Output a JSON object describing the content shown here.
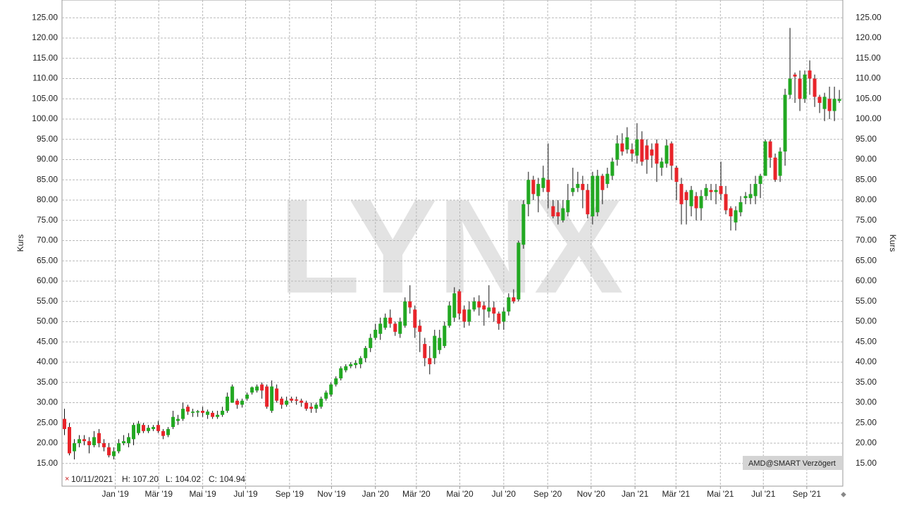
{
  "chart_data": {
    "type": "candlestick",
    "watermark": "LYNX",
    "ylabel": "Kurs",
    "info": {
      "date": "10/11/2021",
      "high": "H: 107.20",
      "low": "L: 104.02",
      "close": "C: 104.94"
    },
    "source": "AMD@SMART Verzögert",
    "up_color": "#22a822",
    "down_color": "#e8242a",
    "grid": true,
    "xlim": [
      -0.5,
      157.7
    ],
    "xticks": [
      {
        "value": 10.3,
        "label": "Jan '19"
      },
      {
        "value": 19.1,
        "label": "Mär '19"
      },
      {
        "value": 28,
        "label": "Mai '19"
      },
      {
        "value": 36.7,
        "label": "Jul '19"
      },
      {
        "value": 45.6,
        "label": "Sep '19"
      },
      {
        "value": 54.1,
        "label": "Nov '19"
      },
      {
        "value": 63,
        "label": "Jan '20"
      },
      {
        "value": 71.3,
        "label": "Mär '20"
      },
      {
        "value": 80.1,
        "label": "Mai '20"
      },
      {
        "value": 89,
        "label": "Jul '20"
      },
      {
        "value": 97.9,
        "label": "Sep '20"
      },
      {
        "value": 106.7,
        "label": "Nov '20"
      },
      {
        "value": 115.6,
        "label": "Jan '21"
      },
      {
        "value": 123.9,
        "label": "Mär '21"
      },
      {
        "value": 132.9,
        "label": "Mai '21"
      },
      {
        "value": 141.6,
        "label": "Jul '21"
      },
      {
        "value": 150.4,
        "label": "Sep '21"
      }
    ],
    "ylim": [
      9.4,
      129.4
    ],
    "yticks": [
      {
        "value": 15,
        "label": "15.00"
      },
      {
        "value": 20,
        "label": "20.00"
      },
      {
        "value": 25,
        "label": "25.00"
      },
      {
        "value": 30,
        "label": "30.00"
      },
      {
        "value": 35,
        "label": "35.00"
      },
      {
        "value": 40,
        "label": "40.00"
      },
      {
        "value": 45,
        "label": "45.00"
      },
      {
        "value": 50,
        "label": "50.00"
      },
      {
        "value": 55,
        "label": "55.00"
      },
      {
        "value": 60,
        "label": "60.00"
      },
      {
        "value": 65,
        "label": "65.00"
      },
      {
        "value": 70,
        "label": "70.00"
      },
      {
        "value": 75,
        "label": "75.00"
      },
      {
        "value": 80,
        "label": "80.00"
      },
      {
        "value": 85,
        "label": "85.00"
      },
      {
        "value": 90,
        "label": "90.00"
      },
      {
        "value": 95,
        "label": "95.00"
      },
      {
        "value": 100,
        "label": "100.00"
      },
      {
        "value": 105,
        "label": "105.00"
      },
      {
        "value": 110,
        "label": "110.00"
      },
      {
        "value": 115,
        "label": "115.00"
      },
      {
        "value": 120,
        "label": "120.00"
      },
      {
        "value": 125,
        "label": "125.00"
      }
    ],
    "open": [
      26,
      24,
      18,
      20,
      21,
      20.5,
      19.5,
      22.5,
      20,
      19,
      16.8,
      18,
      20,
      20,
      21,
      22.5,
      24.5,
      23,
      23.5,
      24.5,
      23,
      22,
      24,
      25.5,
      26,
      29,
      27.5,
      27.6,
      28,
      27,
      27.5,
      26.5,
      27,
      28,
      30,
      30.5,
      29.5,
      31,
      32.5,
      33,
      34.5,
      34,
      28,
      33.5,
      31,
      29.5,
      31,
      30.8,
      30.5,
      30,
      29,
      28.5,
      29,
      31,
      32,
      34.5,
      36,
      38,
      39,
      39.3,
      39.5,
      41,
      43.5,
      46,
      47,
      48.5,
      51,
      49.5,
      47,
      49,
      55,
      53,
      49,
      44.5,
      41,
      41,
      43,
      44,
      49,
      51,
      57.5,
      53,
      50,
      53,
      55,
      54,
      52.5,
      53.5,
      52,
      50,
      52.5,
      56,
      55.5,
      69,
      79,
      85,
      81,
      83,
      85,
      78.5,
      77,
      75,
      77,
      82,
      83,
      84,
      82.5,
      76,
      77,
      86,
      84,
      86,
      90,
      94,
      92.5,
      92.5,
      91,
      95,
      93.5,
      92.5,
      94,
      88,
      89,
      94,
      88,
      84,
      82,
      78.5,
      81,
      78,
      81,
      82.5,
      82,
      83.5,
      81.5,
      78,
      74.5,
      77,
      80.5,
      80.5,
      81,
      84,
      86,
      94.5,
      90.5,
      86,
      92,
      106,
      111,
      110,
      105,
      112,
      110,
      105.5,
      102.5,
      105,
      102,
      104.5
    ],
    "high": [
      28.5,
      25,
      21,
      22,
      22,
      21.5,
      23,
      23.5,
      21,
      20,
      19,
      21,
      22,
      22.5,
      25,
      25.5,
      25,
      24.5,
      24.5,
      25.5,
      23.5,
      24,
      28,
      27,
      30,
      29.5,
      28.5,
      28.2,
      29,
      28.3,
      28,
      28,
      29,
      32.5,
      34.5,
      31,
      31,
      32.5,
      34,
      34.5,
      35,
      34.5,
      35.5,
      34.5,
      31.5,
      31.5,
      31.5,
      31.5,
      31,
      30.5,
      30,
      30,
      31.5,
      33,
      35,
      36.5,
      39,
      39.5,
      40,
      40.5,
      41.5,
      44,
      47,
      49.5,
      51,
      52,
      53,
      50,
      51,
      56,
      59,
      54,
      50.5,
      46,
      44,
      48,
      48,
      50,
      55,
      58.5,
      58,
      54,
      55,
      56,
      56.5,
      55,
      59,
      55,
      52.5,
      53.5,
      57,
      58,
      70,
      80,
      87,
      86,
      85.5,
      88.5,
      94,
      80,
      80,
      80,
      84,
      88,
      87,
      86,
      84,
      87,
      87.5,
      86.5,
      88,
      90.5,
      96,
      96.5,
      98,
      94,
      99,
      97,
      95,
      94,
      95,
      90.5,
      95,
      94.5,
      88.5,
      85.5,
      82.5,
      83.5,
      82,
      82.5,
      84,
      84,
      84,
      89.5,
      83.5,
      78.5,
      78.5,
      81,
      82,
      84,
      86,
      86.5,
      95,
      95,
      91.5,
      93,
      107.5,
      122.5,
      111.5,
      112,
      112,
      114.5,
      111,
      106,
      106.5,
      108,
      108,
      107.2
    ],
    "low": [
      22,
      17,
      16,
      19,
      19.5,
      17.5,
      19,
      19,
      18,
      16.5,
      16,
      17.5,
      19.5,
      19,
      19.5,
      22,
      22.5,
      22.5,
      23,
      22.5,
      21,
      21.5,
      23.5,
      24.5,
      25.5,
      27,
      26.5,
      26.5,
      26.5,
      26,
      26,
      26,
      26.5,
      27.5,
      30,
      28.5,
      28.8,
      30.5,
      32,
      32.5,
      31,
      28.5,
      27.5,
      30,
      28.5,
      29,
      30,
      29.5,
      29,
      28,
      27.5,
      27.5,
      28.5,
      30.5,
      31.5,
      34,
      35.5,
      37.5,
      38.5,
      38.5,
      38.5,
      40,
      42.5,
      45.5,
      45.5,
      48,
      48.5,
      46.5,
      46,
      48.5,
      52,
      46,
      42.5,
      39,
      37,
      39.5,
      42,
      43.5,
      48.5,
      50,
      50.5,
      48.5,
      49,
      52.5,
      51.5,
      49,
      51,
      50,
      48,
      48,
      51.5,
      54.5,
      55,
      68,
      76,
      80,
      77,
      82,
      78,
      75.5,
      74,
      74.5,
      76,
      81,
      82,
      78,
      75.5,
      74,
      76,
      79,
      83,
      85,
      88.5,
      91,
      91.5,
      89.5,
      89,
      88.5,
      86.5,
      88,
      84.5,
      86,
      88,
      85,
      80,
      74,
      74,
      76,
      75,
      75,
      80,
      80,
      79,
      80,
      76.5,
      72.5,
      72.5,
      76,
      79,
      79,
      79,
      80.5,
      86,
      88,
      84.5,
      84.5,
      88.5,
      105,
      104,
      102,
      104,
      106,
      103,
      101.5,
      99.5,
      100,
      99.5,
      104.02
    ],
    "close": [
      23.5,
      17.5,
      20,
      21,
      20.5,
      19.5,
      21.5,
      20,
      19,
      17,
      18,
      20,
      20.5,
      21.5,
      24.5,
      24.8,
      23,
      23.8,
      24,
      23,
      21.8,
      23.5,
      26.5,
      26,
      28.5,
      27.8,
      27.8,
      27.9,
      27.5,
      27.8,
      26.5,
      27,
      28,
      31.5,
      34,
      29.5,
      30.5,
      32,
      33.8,
      34,
      33,
      29,
      34,
      30.5,
      29.5,
      30.5,
      30.5,
      30.5,
      30,
      28.5,
      28.5,
      29.5,
      31,
      32.5,
      34.5,
      36,
      38.5,
      39,
      39.5,
      39.8,
      41,
      43.5,
      46,
      48,
      49.5,
      51,
      49.5,
      47.5,
      50,
      55,
      53.5,
      48.5,
      47.5,
      41,
      39.5,
      46.5,
      46,
      49,
      54,
      57,
      52,
      50,
      53,
      55,
      53.5,
      53,
      53.5,
      52,
      49.5,
      52.5,
      56,
      55,
      69.5,
      79,
      85,
      81.5,
      84,
      85.5,
      82,
      76,
      76,
      78,
      80,
      83,
      84,
      82.5,
      76.5,
      86,
      86,
      82.5,
      86.5,
      89.5,
      94,
      92,
      95.5,
      91.5,
      95,
      89.5,
      90,
      91,
      89,
      89.5,
      93.5,
      88.5,
      84.5,
      79,
      80,
      82.5,
      78,
      81,
      83,
      82,
      82.5,
      81.5,
      77.5,
      76,
      77.5,
      79.5,
      81,
      81.5,
      84,
      86,
      94.5,
      90.5,
      85,
      92,
      106,
      110,
      110.5,
      105,
      111,
      110,
      105.5,
      104,
      105.5,
      102,
      105,
      104.94
    ]
  }
}
